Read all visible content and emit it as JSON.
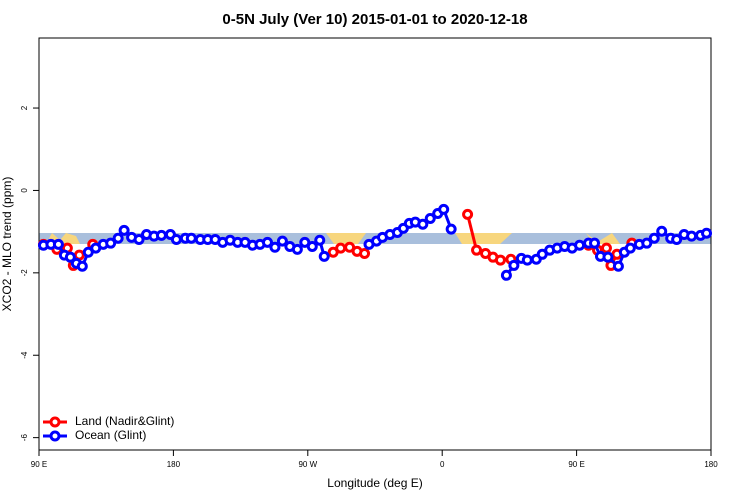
{
  "chart_data": {
    "type": "line",
    "title": "0-5N July (Ver 10)   2015-01-01 to 2020-12-18",
    "x_label": "Longitude (deg E)",
    "y_label": "XCO2 - MLO trend (ppm)",
    "xlim": [
      -270,
      180
    ],
    "xticks": [
      {
        "value": -270,
        "label": "90 E"
      },
      {
        "value": -180,
        "label": "180"
      },
      {
        "value": -90,
        "label": "90 W"
      },
      0,
      {
        "value": 90,
        "label": "90 E"
      },
      180
    ],
    "ylim": [
      -6.3,
      3.7
    ],
    "yticks": [
      2,
      0,
      -2,
      -4,
      -6
    ],
    "legend": "bottomleft",
    "series": [
      {
        "name": "Land (Nadir&Glint)",
        "color": "#ff0000",
        "x": [
          -267,
          -258,
          -251,
          -247,
          -243,
          -234,
          null,
          -73,
          -68,
          -62,
          -57,
          -52,
          null,
          17,
          23,
          29,
          34,
          39,
          46,
          null,
          98,
          104,
          110,
          113,
          117,
          127
        ],
        "values": [
          -1.31,
          -1.43,
          -1.4,
          -1.82,
          -1.57,
          -1.31,
          null,
          -1.5,
          -1.4,
          -1.38,
          -1.48,
          -1.53,
          null,
          -0.58,
          -1.45,
          -1.53,
          -1.62,
          -1.69,
          -1.67,
          null,
          -1.33,
          -1.45,
          -1.4,
          -1.82,
          -1.55,
          -1.28
        ]
      },
      {
        "name": "Ocean (Glint)",
        "color": "#0000ff",
        "x": [
          -267,
          -262,
          -257,
          -253,
          -249,
          -245,
          -241,
          -237,
          -232,
          -227,
          -222,
          -217,
          -213,
          -208,
          -203,
          -198,
          -193,
          -188,
          -182,
          -178,
          -172,
          -168,
          -162,
          -157,
          -152,
          -147,
          -142,
          -137,
          -132,
          -127,
          -122,
          -117,
          -112,
          -107,
          -102,
          -97,
          -92,
          -87,
          -82,
          -79,
          null,
          -49,
          -44,
          -40,
          -35,
          -30,
          -26,
          -22,
          -18,
          -13,
          -8,
          -3,
          1,
          6,
          null,
          43,
          48,
          53,
          57,
          63,
          67,
          72,
          77,
          82,
          87,
          92,
          98,
          102,
          106,
          111,
          118,
          122,
          126,
          132,
          137,
          142,
          147,
          153,
          157,
          162,
          167,
          173,
          177
        ],
        "values": [
          -1.33,
          -1.31,
          -1.31,
          -1.57,
          -1.62,
          -1.77,
          -1.84,
          -1.5,
          -1.4,
          -1.31,
          -1.28,
          -1.16,
          -0.97,
          -1.14,
          -1.19,
          -1.07,
          -1.11,
          -1.09,
          -1.07,
          -1.19,
          -1.16,
          -1.16,
          -1.19,
          -1.19,
          -1.19,
          -1.26,
          -1.21,
          -1.26,
          -1.26,
          -1.33,
          -1.31,
          -1.26,
          -1.38,
          -1.23,
          -1.36,
          -1.43,
          -1.26,
          -1.36,
          -1.21,
          -1.6,
          null,
          -1.31,
          -1.23,
          -1.14,
          -1.07,
          -1.02,
          -0.92,
          -0.8,
          -0.77,
          -0.82,
          -0.68,
          -0.56,
          -0.46,
          -0.94,
          null,
          -2.06,
          -1.82,
          -1.65,
          -1.69,
          -1.67,
          -1.55,
          -1.45,
          -1.4,
          -1.36,
          -1.4,
          -1.33,
          -1.28,
          -1.28,
          -1.6,
          -1.62,
          -1.84,
          -1.5,
          -1.4,
          -1.31,
          -1.28,
          -1.16,
          -0.99,
          -1.16,
          -1.19,
          -1.07,
          -1.11,
          -1.09,
          -1.04
        ]
      }
    ]
  }
}
